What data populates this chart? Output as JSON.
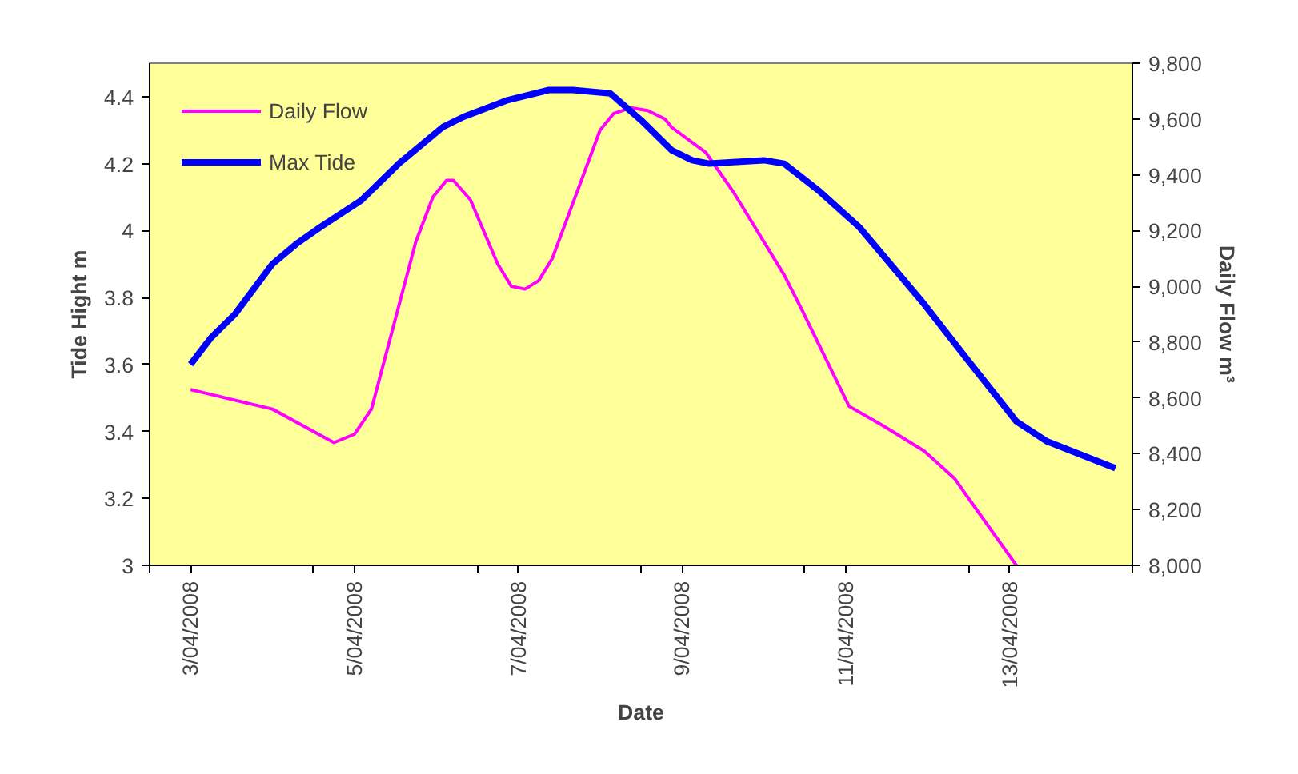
{
  "chart_data": {
    "type": "line",
    "xlabel": "Date",
    "ylabel": "Tide Hight m",
    "y2label": "Daily Flow m³",
    "xlim": [
      "2008-04-02T12:00",
      "2008-04-14T12:00"
    ],
    "xticks": [
      {
        "value": "2008-04-02T12:00",
        "label": null
      },
      {
        "value": "2008-04-03",
        "label": "3/04/2008"
      },
      {
        "value": "2008-04-04T12:00",
        "label": null
      },
      {
        "value": "2008-04-05",
        "label": "5/04/2008"
      },
      {
        "value": "2008-04-06T12:00",
        "label": null
      },
      {
        "value": "2008-04-07",
        "label": "7/04/2008"
      },
      {
        "value": "2008-04-08T12:00",
        "label": null
      },
      {
        "value": "2008-04-09",
        "label": "9/04/2008"
      },
      {
        "value": "2008-04-10T12:00",
        "label": null
      },
      {
        "value": "2008-04-11",
        "label": "11/04/2008"
      },
      {
        "value": "2008-04-12T12:00",
        "label": null
      },
      {
        "value": "2008-04-13",
        "label": "13/04/2008"
      },
      {
        "value": "2008-04-14T12:00",
        "label": null
      }
    ],
    "ylim": [
      3,
      4.5
    ],
    "yticks": [
      3,
      3.2,
      3.4,
      3.6,
      3.8,
      4,
      4.2,
      4.4
    ],
    "y2lim": [
      8000,
      9800
    ],
    "y2ticks": [
      {
        "value": 8000,
        "label": "8,000"
      },
      {
        "value": 8200,
        "label": "8,200"
      },
      {
        "value": 8400,
        "label": "8,400"
      },
      {
        "value": 8600,
        "label": "8,600"
      },
      {
        "value": 8800,
        "label": "8,800"
      },
      {
        "value": 9000,
        "label": "9,000"
      },
      {
        "value": 9200,
        "label": "9,200"
      },
      {
        "value": 9400,
        "label": "9,400"
      },
      {
        "value": 9600,
        "label": "9,600"
      },
      {
        "value": 9800,
        "label": "9,800"
      }
    ],
    "grid": false,
    "legend": "top left",
    "line_style": "solid",
    "marker": "none",
    "series": [
      {
        "name": "Daily Flow",
        "color": "#ff00ff",
        "axis": "y2",
        "x": [
          "2008-04-03T00:00",
          "2008-04-04T00:00",
          "2008-04-04T18:00",
          "2008-04-05T00:00",
          "2008-04-05T05:00",
          "2008-04-05T18:00",
          "2008-04-05T23:00",
          "2008-04-06T03:00",
          "2008-04-06T05:00",
          "2008-04-06T10:00",
          "2008-04-06T18:00",
          "2008-04-06T22:00",
          "2008-04-07T02:00",
          "2008-04-07T06:00",
          "2008-04-07T10:00",
          "2008-04-08T00:00",
          "2008-04-08T04:00",
          "2008-04-08T09:00",
          "2008-04-08T14:00",
          "2008-04-08T19:00",
          "2008-04-08T21:00",
          "2008-04-09T07:00",
          "2008-04-09T15:00",
          "2008-04-10T06:00",
          "2008-04-10T11:00",
          "2008-04-11T01:00",
          "2008-04-11T11:00",
          "2008-04-11T23:00",
          "2008-04-12T08:00",
          "2008-04-12T12:00",
          "2008-04-13T02:00"
        ],
        "values": [
          8630,
          8560,
          8440,
          8470,
          8560,
          9160,
          9320,
          9380,
          9380,
          9310,
          9080,
          9000,
          8990,
          9020,
          9100,
          9560,
          9620,
          9640,
          9630,
          9600,
          9570,
          9480,
          9340,
          9040,
          8920,
          8570,
          8500,
          8410,
          8310,
          8240,
          8000
        ]
      },
      {
        "name": "Max Tide",
        "color": "#0000ff",
        "x": [
          "2008-04-03T00:00",
          "2008-04-03T06:00",
          "2008-04-03T13:00",
          "2008-04-04T00:00",
          "2008-04-04T07:00",
          "2008-04-04T14:00",
          "2008-04-05T02:00",
          "2008-04-05T13:00",
          "2008-04-06T02:00",
          "2008-04-06T08:00",
          "2008-04-06T21:00",
          "2008-04-07T09:00",
          "2008-04-07T16:00",
          "2008-04-08T03:00",
          "2008-04-08T12:00",
          "2008-04-08T21:00",
          "2008-04-09T03:00",
          "2008-04-09T08:00",
          "2008-04-10T00:00",
          "2008-04-10T06:00",
          "2008-04-10T16:00",
          "2008-04-11T04:00",
          "2008-04-11T23:00",
          "2008-04-12T12:00",
          "2008-04-13T02:00",
          "2008-04-13T11:00",
          "2008-04-14T07:00"
        ],
        "values": [
          3.6,
          3.68,
          3.75,
          3.9,
          3.96,
          4.01,
          4.09,
          4.2,
          4.31,
          4.34,
          4.39,
          4.42,
          4.42,
          4.41,
          4.33,
          4.24,
          4.21,
          4.2,
          4.21,
          4.2,
          4.12,
          4.01,
          3.78,
          3.61,
          3.43,
          3.37,
          3.29
        ]
      }
    ]
  }
}
